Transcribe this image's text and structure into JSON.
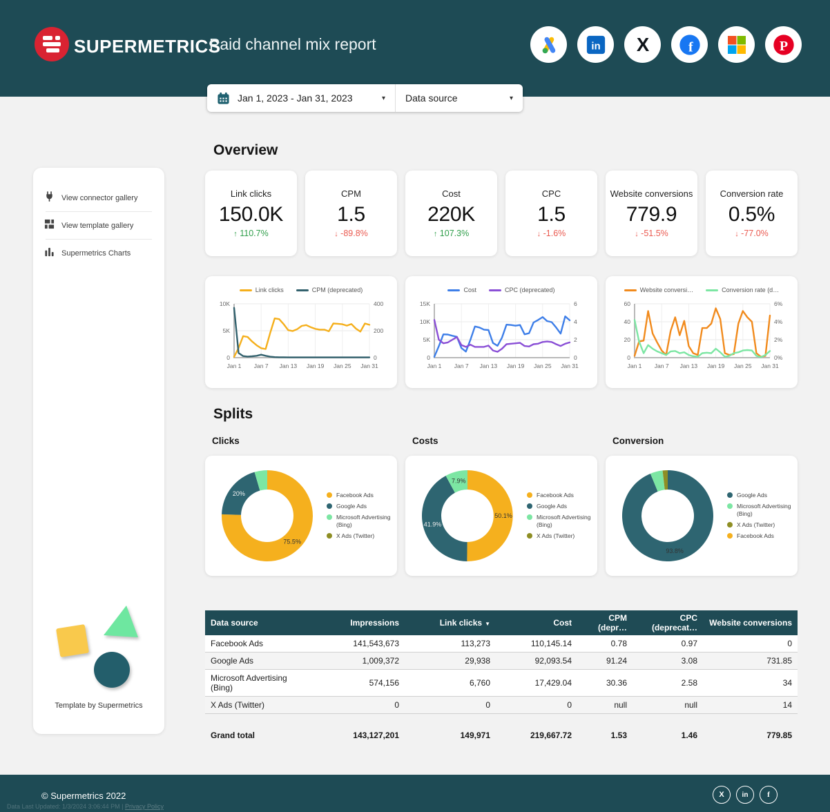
{
  "header": {
    "brand": "SUPERMETRICS",
    "title": "Paid channel mix report",
    "social_icons": [
      "google-ads",
      "linkedin",
      "x",
      "facebook",
      "microsoft",
      "pinterest"
    ]
  },
  "filters": {
    "date_range": "Jan 1, 2023 - Jan 31, 2023",
    "data_source_label": "Data source"
  },
  "sidebar": {
    "items": [
      {
        "icon": "plug-icon",
        "label": "View connector gallery"
      },
      {
        "icon": "template-grid-icon",
        "label": "View template gallery"
      },
      {
        "icon": "bar-chart-icon",
        "label": "Supermetrics Charts"
      }
    ],
    "template_credit": "Template by Supermetrics"
  },
  "overview": {
    "heading": "Overview",
    "cards": [
      {
        "label": "Link clicks",
        "value": "150.0K",
        "delta": "110.7%",
        "direction": "up"
      },
      {
        "label": "CPM",
        "value": "1.5",
        "delta": "-89.8%",
        "direction": "down"
      },
      {
        "label": "Cost",
        "value": "220K",
        "delta": "107.3%",
        "direction": "up"
      },
      {
        "label": "CPC",
        "value": "1.5",
        "delta": "-1.6%",
        "direction": "down"
      },
      {
        "label": "Website conversions",
        "value": "779.9",
        "delta": "-51.5%",
        "direction": "down"
      },
      {
        "label": "Conversion rate",
        "value": "0.5%",
        "delta": "-77.0%",
        "direction": "down"
      }
    ]
  },
  "splits_heading": "Splits",
  "chart_data": [
    {
      "id": "clicks-cpm-trend",
      "type": "line",
      "x_tick_labels": [
        "Jan 1",
        "Jan 7",
        "Jan 13",
        "Jan 19",
        "Jan 25",
        "Jan 31"
      ],
      "left_axis": {
        "max": 10000,
        "ticks": [
          {
            "v": 0,
            "label": "0"
          },
          {
            "v": 5000,
            "label": "5K"
          },
          {
            "v": 10000,
            "label": "10K"
          }
        ]
      },
      "right_axis": {
        "max": 400,
        "ticks": [
          {
            "v": 0,
            "label": "0"
          },
          {
            "v": 200,
            "label": "200"
          },
          {
            "v": 400,
            "label": "400"
          }
        ]
      },
      "series": [
        {
          "name": "Link clicks",
          "color": "#f5af1b",
          "axis": "left",
          "values": [
            150,
            1800,
            4000,
            3850,
            3000,
            2300,
            1750,
            1600,
            4600,
            7300,
            7150,
            6200,
            5100,
            4950,
            5300,
            5900,
            6050,
            5650,
            5350,
            5200,
            5200,
            4900,
            6350,
            6300,
            6200,
            5950,
            6250,
            5400,
            4850,
            6350,
            6100
          ]
        },
        {
          "name": "CPM (deprecated)",
          "color": "#32616d",
          "axis": "right",
          "values": [
            370,
            35,
            12,
            8,
            10,
            14,
            22,
            14,
            7,
            4,
            3,
            3,
            2,
            2,
            2,
            2,
            2,
            2,
            2,
            2,
            2,
            2,
            2,
            2,
            2,
            2,
            2,
            2,
            2,
            2,
            2
          ]
        }
      ]
    },
    {
      "id": "cost-cpc-trend",
      "type": "line",
      "x_tick_labels": [
        "Jan 1",
        "Jan 7",
        "Jan 13",
        "Jan 19",
        "Jan 25",
        "Jan 31"
      ],
      "left_axis": {
        "max": 15000,
        "ticks": [
          {
            "v": 0,
            "label": "0"
          },
          {
            "v": 5000,
            "label": "5K"
          },
          {
            "v": 10000,
            "label": "10K"
          },
          {
            "v": 15000,
            "label": "15K"
          }
        ]
      },
      "right_axis": {
        "max": 6,
        "ticks": [
          {
            "v": 0,
            "label": "0"
          },
          {
            "v": 2,
            "label": "2"
          },
          {
            "v": 4,
            "label": "4"
          },
          {
            "v": 6,
            "label": "6"
          }
        ]
      },
      "series": [
        {
          "name": "Cost",
          "color": "#3d7ee8",
          "axis": "left",
          "values": [
            250,
            3200,
            6500,
            6450,
            6100,
            5800,
            2700,
            1700,
            5000,
            8700,
            8400,
            7800,
            7700,
            4100,
            3300,
            5600,
            9200,
            9100,
            8900,
            9100,
            6500,
            6800,
            9800,
            10500,
            11300,
            10200,
            9900,
            8400,
            6700,
            11500,
            10400
          ]
        },
        {
          "name": "CPC (deprecated)",
          "color": "#8a4fd6",
          "axis": "right",
          "values": [
            4.2,
            2.0,
            1.6,
            1.7,
            2.0,
            2.3,
            1.4,
            1.2,
            1.45,
            1.2,
            1.2,
            1.2,
            1.35,
            0.8,
            0.65,
            1.0,
            1.5,
            1.55,
            1.6,
            1.65,
            1.3,
            1.25,
            1.5,
            1.55,
            1.75,
            1.8,
            1.75,
            1.5,
            1.3,
            1.55,
            1.7
          ]
        }
      ]
    },
    {
      "id": "conversions-rate-trend",
      "type": "line",
      "x_tick_labels": [
        "Jan 1",
        "Jan 7",
        "Jan 13",
        "Jan 19",
        "Jan 25",
        "Jan 31"
      ],
      "left_axis": {
        "max": 60,
        "ticks": [
          {
            "v": 0,
            "label": "0"
          },
          {
            "v": 20,
            "label": "20"
          },
          {
            "v": 40,
            "label": "40"
          },
          {
            "v": 60,
            "label": "60"
          }
        ]
      },
      "right_axis": {
        "max": 6,
        "ticks": [
          {
            "v": 0,
            "label": "0%"
          },
          {
            "v": 2,
            "label": "2%"
          },
          {
            "v": 4,
            "label": "4%"
          },
          {
            "v": 6,
            "label": "6%"
          }
        ]
      },
      "series": [
        {
          "name": "Website conversi…",
          "color": "#f18a1c",
          "axis": "left",
          "values": [
            2,
            18,
            19,
            52,
            27,
            17,
            8,
            3,
            30,
            45,
            25,
            41,
            13,
            5,
            3,
            33,
            33,
            38,
            55,
            43,
            5,
            3,
            4,
            38,
            52,
            45,
            40,
            5,
            1,
            2,
            47
          ]
        },
        {
          "name": "Conversion rate (d…",
          "color": "#7ce6a3",
          "axis": "right",
          "values": [
            4.2,
            1.8,
            0.5,
            1.4,
            1.0,
            0.7,
            0.5,
            0.3,
            0.7,
            0.75,
            0.5,
            0.6,
            0.3,
            0.15,
            0.1,
            0.5,
            0.55,
            0.5,
            1.0,
            0.6,
            0.1,
            0.2,
            0.5,
            0.6,
            0.8,
            0.85,
            0.8,
            0.2,
            0.05,
            0.3,
            0.75
          ]
        }
      ]
    },
    {
      "id": "clicks-split",
      "type": "donut",
      "title": "Clicks",
      "slices": [
        {
          "name": "Facebook Ads",
          "pct": 75.5,
          "color": "#f5b01e",
          "label": "75.5%",
          "label_color": "#333333"
        },
        {
          "name": "Google Ads",
          "pct": 20.0,
          "color": "#2e6571",
          "label": "20%",
          "label_color": "#f2f2f2"
        },
        {
          "name": "Microsoft Advertising (Bing)",
          "pct": 4.5,
          "color": "#7ce6a3",
          "label": null,
          "label_color": null
        },
        {
          "name": "X Ads (Twitter)",
          "pct": 0,
          "color": "#8e8e24",
          "label": null,
          "label_color": null
        }
      ]
    },
    {
      "id": "costs-split",
      "type": "donut",
      "title": "Costs",
      "slices": [
        {
          "name": "Facebook Ads",
          "pct": 50.1,
          "color": "#f5b01e",
          "label": "50.1%",
          "label_color": "#333333"
        },
        {
          "name": "Google Ads",
          "pct": 41.9,
          "color": "#2e6571",
          "label": "41.9%",
          "label_color": "#ededed"
        },
        {
          "name": "Microsoft Advertising (Bing)",
          "pct": 7.9,
          "color": "#7ce6a3",
          "label": "7.9%",
          "label_color": "#333333"
        },
        {
          "name": "X Ads (Twitter)",
          "pct": 0,
          "color": "#8e8e24",
          "label": null,
          "label_color": null
        }
      ]
    },
    {
      "id": "conversion-split",
      "type": "donut",
      "title": "Conversion",
      "slices": [
        {
          "name": "Google Ads",
          "pct": 93.8,
          "color": "#2e6571",
          "label": "93.8%",
          "label_color": "#333333"
        },
        {
          "name": "Microsoft Advertising (Bing)",
          "pct": 4.4,
          "color": "#7ce6a3",
          "label": null,
          "label_color": null
        },
        {
          "name": "X Ads (Twitter)",
          "pct": 1.8,
          "color": "#8e8e24",
          "label": null,
          "label_color": null
        },
        {
          "name": "Facebook Ads",
          "pct": 0,
          "color": "#f5b01e",
          "label": null,
          "label_color": null
        }
      ]
    }
  ],
  "table": {
    "columns": [
      {
        "label": "Data source",
        "align": "left",
        "sorted": null
      },
      {
        "label": "Impressions",
        "align": "right",
        "sorted": null
      },
      {
        "label": "Link clicks",
        "align": "right",
        "sorted": "desc"
      },
      {
        "label": "Cost",
        "align": "right",
        "sorted": null
      },
      {
        "label": "CPM (depr…",
        "align": "right",
        "sorted": null
      },
      {
        "label": "CPC (deprecat…",
        "align": "right",
        "sorted": null
      },
      {
        "label": "Website conversions",
        "align": "right",
        "sorted": null
      }
    ],
    "rows": [
      [
        "Facebook Ads",
        "141,543,673",
        "113,273",
        "110,145.14",
        "0.78",
        "0.97",
        "0"
      ],
      [
        "Google Ads",
        "1,009,372",
        "29,938",
        "92,093.54",
        "91.24",
        "3.08",
        "731.85"
      ],
      [
        "Microsoft Advertising (Bing)",
        "574,156",
        "6,760",
        "17,429.04",
        "30.36",
        "2.58",
        "34"
      ],
      [
        "X Ads (Twitter)",
        "0",
        "0",
        "0",
        "null",
        "null",
        "14"
      ]
    ],
    "grand_total": [
      "Grand total",
      "143,127,201",
      "149,971",
      "219,667.72",
      "1.53",
      "1.46",
      "779.85"
    ]
  },
  "footer": {
    "copyright": "© Supermetrics 2022",
    "meta": "Data Last Updated: 1/3/2024 3:06:44 PM",
    "meta_separator": " | ",
    "privacy": "Privacy Policy",
    "social_icons": [
      "x",
      "linkedin",
      "facebook"
    ]
  },
  "colors": {
    "header_teal": "#1e4b55",
    "brand_red": "#d92332",
    "accent_orange": "#f5b01e",
    "accent_teal": "#2e6571",
    "accent_green": "#7ce6a3",
    "accent_olive": "#8e8e24",
    "cost_blue": "#3d7ee8",
    "cpc_purple": "#8a4fd6",
    "conversions_orange": "#f18a1c",
    "delta_green": "#2f9e4a",
    "delta_red": "#ea5a50",
    "page_bg": "#f2f2f2"
  }
}
